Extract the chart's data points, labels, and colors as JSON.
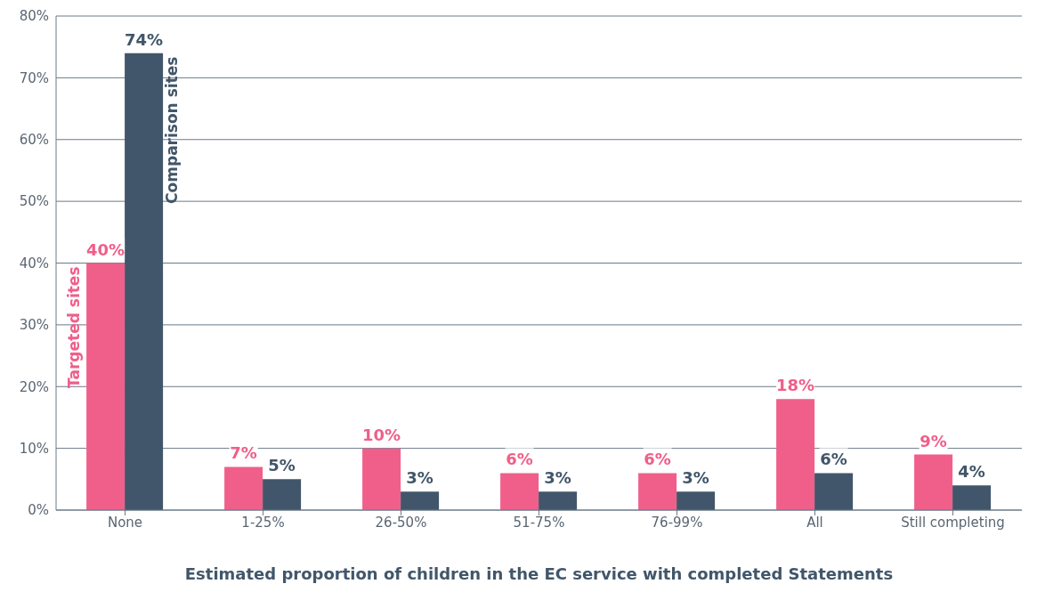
{
  "chart_data": {
    "type": "bar",
    "xlabel": "Estimated proportion of children in the EC service with completed Statements",
    "categories": [
      "None",
      "1-25%",
      "26-50%",
      "51-75%",
      "76-99%",
      "All",
      "Still completing"
    ],
    "series": [
      {
        "name": "Targeted sites",
        "color": "#ef5f8a",
        "values": [
          40,
          7,
          10,
          6,
          6,
          18,
          9
        ],
        "value_labels": [
          "40%",
          "7%",
          "10%",
          "6%",
          "6%",
          "18%",
          "9%"
        ]
      },
      {
        "name": "Comparison sites",
        "color": "#41566a",
        "values": [
          74,
          5,
          3,
          3,
          3,
          6,
          4
        ],
        "value_labels": [
          "74%",
          "5%",
          "3%",
          "3%",
          "3%",
          "6%",
          "4%"
        ]
      }
    ],
    "ylim": [
      0,
      80
    ],
    "yticks": [
      {
        "value": 0,
        "label": "0%"
      },
      {
        "value": 10,
        "label": "10%"
      },
      {
        "value": 20,
        "label": "20%"
      },
      {
        "value": 30,
        "label": "30%"
      },
      {
        "value": 40,
        "label": "40%"
      },
      {
        "value": 50,
        "label": "50%"
      },
      {
        "value": 60,
        "label": "60%"
      },
      {
        "value": 70,
        "label": "70%"
      },
      {
        "value": 80,
        "label": "80%"
      }
    ],
    "grid": "y",
    "legend": false
  }
}
